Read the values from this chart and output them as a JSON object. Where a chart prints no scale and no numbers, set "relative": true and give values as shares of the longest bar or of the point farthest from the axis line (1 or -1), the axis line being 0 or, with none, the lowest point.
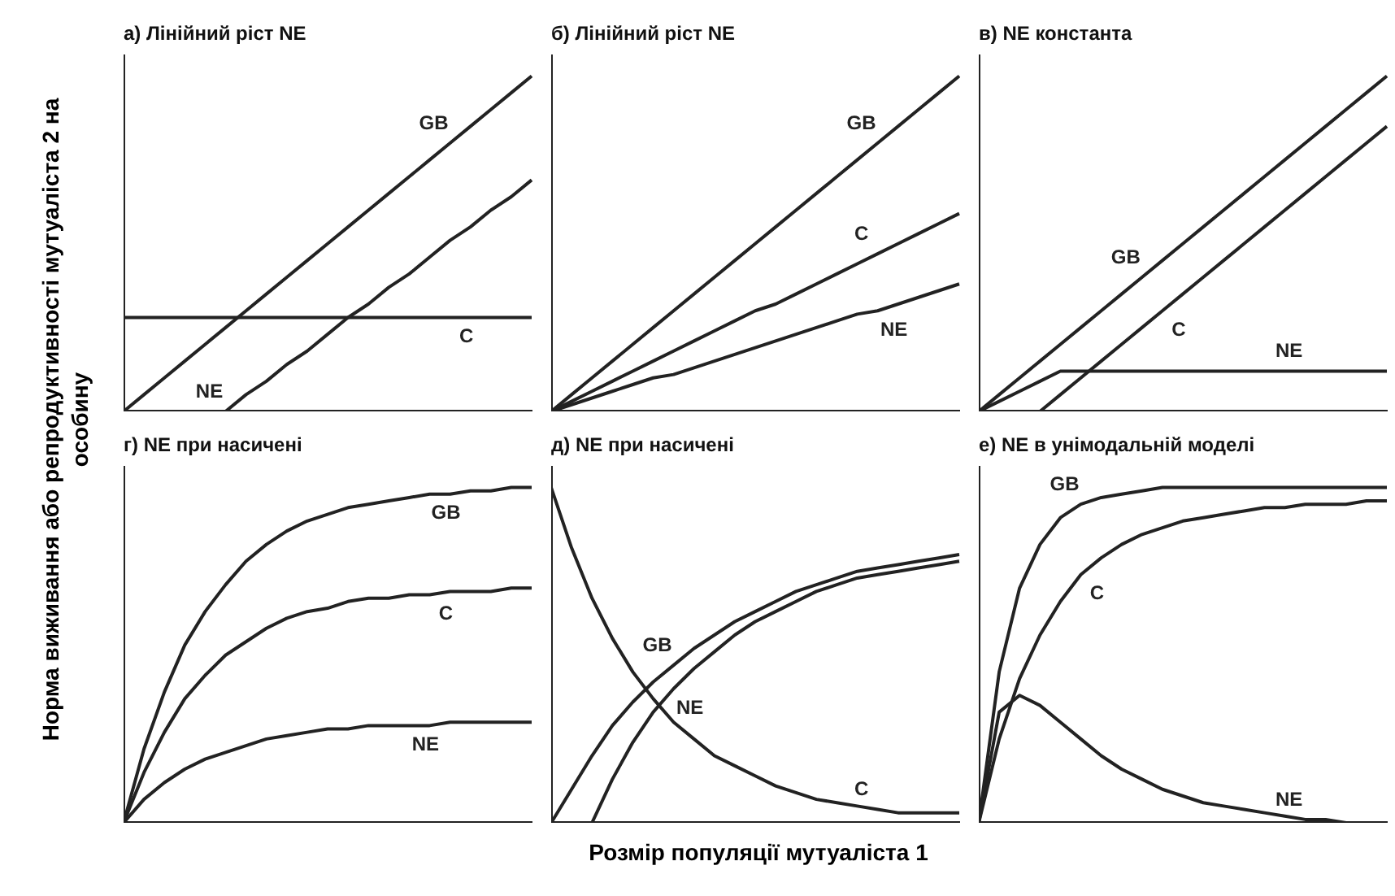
{
  "chart_data": [
    {
      "type": "line",
      "title": "а) Лінійний ріст NE",
      "relative": true,
      "grid": false,
      "legend": false,
      "marker": "none",
      "ylabel": "Норма виживання або репродуктивності мутуаліста 2 на особину",
      "categories": [
        null,
        null,
        null,
        null,
        null,
        null,
        null,
        null,
        null,
        null,
        null,
        null,
        null,
        null,
        null,
        null,
        null,
        null,
        null,
        null,
        null
      ],
      "series": [
        {
          "name": "GB",
          "color": "#222222",
          "values": [
            0,
            0.05,
            0.1,
            0.15,
            0.2,
            0.25,
            0.3,
            0.35,
            0.4,
            0.45,
            0.5,
            0.55,
            0.6,
            0.65,
            0.7,
            0.75,
            0.8,
            0.85,
            0.9,
            0.95,
            1
          ]
        },
        {
          "name": "NE",
          "color": "#222222",
          "values": [
            null,
            null,
            null,
            null,
            null,
            0,
            0.05,
            0.09,
            0.14,
            0.18,
            0.23,
            0.28,
            0.32,
            0.37,
            0.41,
            0.46,
            0.51,
            0.55,
            0.6,
            0.64,
            0.69
          ]
        },
        {
          "name": "C",
          "color": "#222222",
          "values": [
            0.28,
            0.28,
            0.28,
            0.28,
            0.28,
            0.28,
            0.28,
            0.28,
            0.28,
            0.28,
            0.28,
            0.28,
            0.28,
            0.28,
            0.28,
            0.28,
            0.28,
            0.28,
            0.28,
            0.28,
            0.28
          ]
        }
      ]
    },
    {
      "type": "line",
      "title": "б) Лінійний ріст NE",
      "relative": true,
      "grid": false,
      "legend": false,
      "marker": "none",
      "categories": [
        null,
        null,
        null,
        null,
        null,
        null,
        null,
        null,
        null,
        null,
        null,
        null,
        null,
        null,
        null,
        null,
        null,
        null,
        null,
        null,
        null
      ],
      "series": [
        {
          "name": "GB",
          "color": "#222222",
          "values": [
            0,
            0.05,
            0.1,
            0.15,
            0.2,
            0.25,
            0.3,
            0.35,
            0.4,
            0.45,
            0.5,
            0.55,
            0.6,
            0.65,
            0.7,
            0.75,
            0.8,
            0.85,
            0.9,
            0.95,
            1
          ]
        },
        {
          "name": "C",
          "color": "#222222",
          "values": [
            0,
            0.03,
            0.06,
            0.09,
            0.12,
            0.15,
            0.18,
            0.21,
            0.24,
            0.27,
            0.3,
            0.32,
            0.35,
            0.38,
            0.41,
            0.44,
            0.47,
            0.5,
            0.53,
            0.56,
            0.59
          ]
        },
        {
          "name": "NE",
          "color": "#222222",
          "values": [
            0,
            0.02,
            0.04,
            0.06,
            0.08,
            0.1,
            0.11,
            0.13,
            0.15,
            0.17,
            0.19,
            0.21,
            0.23,
            0.25,
            0.27,
            0.29,
            0.3,
            0.32,
            0.34,
            0.36,
            0.38
          ]
        }
      ]
    },
    {
      "type": "line",
      "title": "в) NE константа",
      "relative": true,
      "grid": false,
      "legend": false,
      "marker": "none",
      "categories": [
        null,
        null,
        null,
        null,
        null,
        null,
        null,
        null,
        null,
        null,
        null,
        null,
        null,
        null,
        null,
        null,
        null,
        null,
        null,
        null,
        null
      ],
      "series": [
        {
          "name": "GB",
          "color": "#222222",
          "values": [
            0,
            0.05,
            0.1,
            0.15,
            0.2,
            0.25,
            0.3,
            0.35,
            0.4,
            0.45,
            0.5,
            0.55,
            0.6,
            0.65,
            0.7,
            0.75,
            0.8,
            0.85,
            0.9,
            0.95,
            1
          ]
        },
        {
          "name": "C",
          "color": "#222222",
          "values": [
            null,
            null,
            null,
            0,
            0.05,
            0.1,
            0.15,
            0.2,
            0.25,
            0.3,
            0.35,
            0.4,
            0.45,
            0.5,
            0.55,
            0.6,
            0.65,
            0.7,
            0.75,
            0.8,
            0.85
          ]
        },
        {
          "name": "NE",
          "color": "#222222",
          "values": [
            0,
            0.03,
            0.06,
            0.09,
            0.12,
            0.12,
            0.12,
            0.12,
            0.12,
            0.12,
            0.12,
            0.12,
            0.12,
            0.12,
            0.12,
            0.12,
            0.12,
            0.12,
            0.12,
            0.12,
            0.12
          ]
        }
      ]
    },
    {
      "type": "line",
      "title": "г) NE при насичені",
      "relative": true,
      "grid": false,
      "legend": false,
      "marker": "none",
      "categories": [
        null,
        null,
        null,
        null,
        null,
        null,
        null,
        null,
        null,
        null,
        null,
        null,
        null,
        null,
        null,
        null,
        null,
        null,
        null,
        null,
        null
      ],
      "series": [
        {
          "name": "GB",
          "color": "#222222",
          "values": [
            0,
            0.22,
            0.39,
            0.53,
            0.63,
            0.71,
            0.78,
            0.83,
            0.87,
            0.9,
            0.92,
            0.94,
            0.95,
            0.96,
            0.97,
            0.98,
            0.98,
            0.99,
            0.99,
            1,
            1
          ]
        },
        {
          "name": "C",
          "color": "#222222",
          "values": [
            0,
            0.15,
            0.27,
            0.37,
            0.44,
            0.5,
            0.54,
            0.58,
            0.61,
            0.63,
            0.64,
            0.66,
            0.67,
            0.67,
            0.68,
            0.68,
            0.69,
            0.69,
            0.69,
            0.7,
            0.7
          ]
        },
        {
          "name": "NE",
          "color": "#222222",
          "values": [
            0,
            0.07,
            0.12,
            0.16,
            0.19,
            0.21,
            0.23,
            0.25,
            0.26,
            0.27,
            0.28,
            0.28,
            0.29,
            0.29,
            0.29,
            0.29,
            0.3,
            0.3,
            0.3,
            0.3,
            0.3
          ]
        }
      ]
    },
    {
      "type": "line",
      "title": "д) NE при насичені",
      "relative": true,
      "grid": false,
      "legend": false,
      "marker": "none",
      "xlabel": "Розмір популяції мутуаліста 1",
      "categories": [
        null,
        null,
        null,
        null,
        null,
        null,
        null,
        null,
        null,
        null,
        null,
        null,
        null,
        null,
        null,
        null,
        null,
        null,
        null,
        null,
        null
      ],
      "series": [
        {
          "name": "GB",
          "color": "#222222",
          "values": [
            0,
            0.1,
            0.2,
            0.29,
            0.36,
            0.42,
            0.47,
            0.52,
            0.56,
            0.6,
            0.63,
            0.66,
            0.69,
            0.71,
            0.73,
            0.75,
            0.76,
            0.77,
            0.78,
            0.79,
            0.8
          ]
        },
        {
          "name": "NE",
          "color": "#222222",
          "values": [
            null,
            null,
            0,
            0.13,
            0.24,
            0.33,
            0.4,
            0.46,
            0.51,
            0.56,
            0.6,
            0.63,
            0.66,
            0.69,
            0.71,
            0.73,
            0.74,
            0.75,
            0.76,
            0.77,
            0.78
          ]
        },
        {
          "name": "C",
          "color": "#222222",
          "values": [
            1,
            0.82,
            0.67,
            0.55,
            0.45,
            0.37,
            0.3,
            0.25,
            0.2,
            0.17,
            0.14,
            0.11,
            0.09,
            0.07,
            0.06,
            0.05,
            0.04,
            0.03,
            0.03,
            0.03,
            0.03
          ]
        }
      ]
    },
    {
      "type": "line",
      "title": "е) NE в унімодальній моделі",
      "relative": true,
      "grid": false,
      "legend": false,
      "marker": "none",
      "categories": [
        null,
        null,
        null,
        null,
        null,
        null,
        null,
        null,
        null,
        null,
        null,
        null,
        null,
        null,
        null,
        null,
        null,
        null,
        null,
        null,
        null
      ],
      "series": [
        {
          "name": "GB",
          "color": "#222222",
          "values": [
            0,
            0.45,
            0.7,
            0.83,
            0.91,
            0.95,
            0.97,
            0.98,
            0.99,
            1,
            1,
            1,
            1,
            1,
            1,
            1,
            1,
            1,
            1,
            1,
            1
          ]
        },
        {
          "name": "C",
          "color": "#222222",
          "values": [
            0,
            0.25,
            0.43,
            0.56,
            0.66,
            0.74,
            0.79,
            0.83,
            0.86,
            0.88,
            0.9,
            0.91,
            0.92,
            0.93,
            0.94,
            0.94,
            0.95,
            0.95,
            0.95,
            0.96,
            0.96
          ]
        },
        {
          "name": "NE",
          "color": "#222222",
          "values": [
            0,
            0.33,
            0.38,
            0.35,
            0.3,
            0.25,
            0.2,
            0.16,
            0.13,
            0.1,
            0.08,
            0.06,
            0.05,
            0.04,
            0.03,
            0.02,
            0.01,
            0.01,
            0,
            0,
            0
          ]
        }
      ]
    }
  ]
}
